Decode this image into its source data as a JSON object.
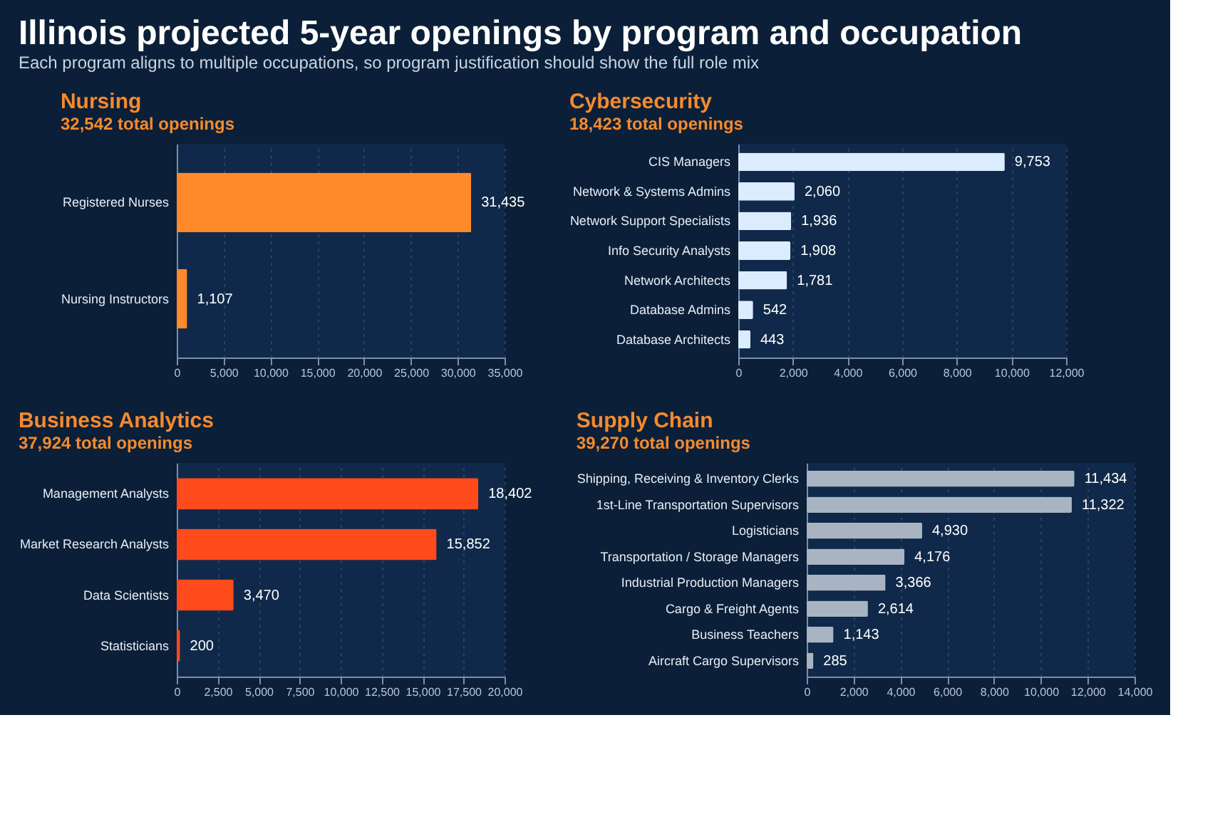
{
  "chart_data": [
    {
      "type": "bar",
      "orientation": "horizontal",
      "title": "Nursing",
      "subtitle": "32,542 total openings",
      "annotations": [
        "Illinois projected 5-year openings by program and occupation",
        "Each program aligns to multiple occupations, so program justification should show the full role mix"
      ],
      "categories": [
        "Registered Nurses",
        "Nursing Instructors"
      ],
      "values": [
        31435,
        1107
      ],
      "value_labels": [
        "31,435",
        "1,107"
      ],
      "color": "#ff8a2a",
      "xlim": [
        0,
        35000
      ],
      "xticks": [
        0,
        {
          "value": 5000,
          "label": "5,000"
        },
        {
          "value": 10000,
          "label": "10,000"
        },
        {
          "value": 15000,
          "label": "15,000"
        },
        {
          "value": 20000,
          "label": "20,000"
        },
        {
          "value": 25000,
          "label": "25,000"
        },
        {
          "value": 30000,
          "label": "30,000"
        },
        {
          "value": 35000,
          "label": "35,000"
        }
      ],
      "grid": "x"
    },
    {
      "type": "bar",
      "orientation": "horizontal",
      "title": "Cybersecurity",
      "subtitle": "18,423 total openings",
      "categories": [
        "CIS Managers",
        "Network & Systems Admins",
        "Network Support Specialists",
        "Info Security Analysts",
        "Network Architects",
        "Database Admins",
        "Database Architects"
      ],
      "values": [
        9753,
        2060,
        1936,
        1908,
        1781,
        542,
        443
      ],
      "value_labels": [
        "9,753",
        "2,060",
        "1,936",
        "1,908",
        "1,781",
        "542",
        "443"
      ],
      "color": "#dcecff",
      "xlim": [
        0,
        12000
      ],
      "xticks": [
        0,
        {
          "value": 2000,
          "label": "2,000"
        },
        {
          "value": 4000,
          "label": "4,000"
        },
        {
          "value": 6000,
          "label": "6,000"
        },
        {
          "value": 8000,
          "label": "8,000"
        },
        {
          "value": 10000,
          "label": "10,000"
        },
        {
          "value": 12000,
          "label": "12,000"
        }
      ],
      "grid": "x"
    },
    {
      "type": "bar",
      "orientation": "horizontal",
      "title": "Business Analytics",
      "subtitle": "37,924 total openings",
      "categories": [
        "Management Analysts",
        "Market Research Analysts",
        "Data Scientists",
        "Statisticians"
      ],
      "values": [
        18402,
        15852,
        3470,
        200
      ],
      "value_labels": [
        "18,402",
        "15,852",
        "3,470",
        "200"
      ],
      "color": "#ff4a1c",
      "xlim": [
        0,
        20000
      ],
      "xticks": [
        0,
        {
          "value": 2500,
          "label": "2,500"
        },
        {
          "value": 5000,
          "label": "5,000"
        },
        {
          "value": 7500,
          "label": "7,500"
        },
        {
          "value": 10000,
          "label": "10,000"
        },
        {
          "value": 12500,
          "label": "12,500"
        },
        {
          "value": 15000,
          "label": "15,000"
        },
        {
          "value": 17500,
          "label": "17,500"
        },
        {
          "value": 20000,
          "label": "20,000"
        }
      ],
      "grid": "x"
    },
    {
      "type": "bar",
      "orientation": "horizontal",
      "title": "Supply Chain",
      "subtitle": "39,270 total openings",
      "categories": [
        "Shipping, Receiving & Inventory Clerks",
        "1st-Line Transportation Supervisors",
        "Logisticians",
        "Transportation / Storage Managers",
        "Industrial Production Managers",
        "Cargo & Freight Agents",
        "Business Teachers",
        "Aircraft Cargo Supervisors"
      ],
      "values": [
        11434,
        11322,
        4930,
        4176,
        3366,
        2614,
        1143,
        285
      ],
      "value_labels": [
        "11,434",
        "11,322",
        "4,930",
        "4,176",
        "3,366",
        "2,614",
        "1,143",
        "285"
      ],
      "color": "#a9b4c2",
      "xlim": [
        0,
        14000
      ],
      "xticks": [
        0,
        {
          "value": 2000,
          "label": "2,000"
        },
        {
          "value": 4000,
          "label": "4,000"
        },
        {
          "value": 6000,
          "label": "6,000"
        },
        {
          "value": 8000,
          "label": "8,000"
        },
        {
          "value": 10000,
          "label": "10,000"
        },
        {
          "value": 12000,
          "label": "12,000"
        },
        {
          "value": 14000,
          "label": "14,000"
        }
      ],
      "grid": "x"
    }
  ]
}
